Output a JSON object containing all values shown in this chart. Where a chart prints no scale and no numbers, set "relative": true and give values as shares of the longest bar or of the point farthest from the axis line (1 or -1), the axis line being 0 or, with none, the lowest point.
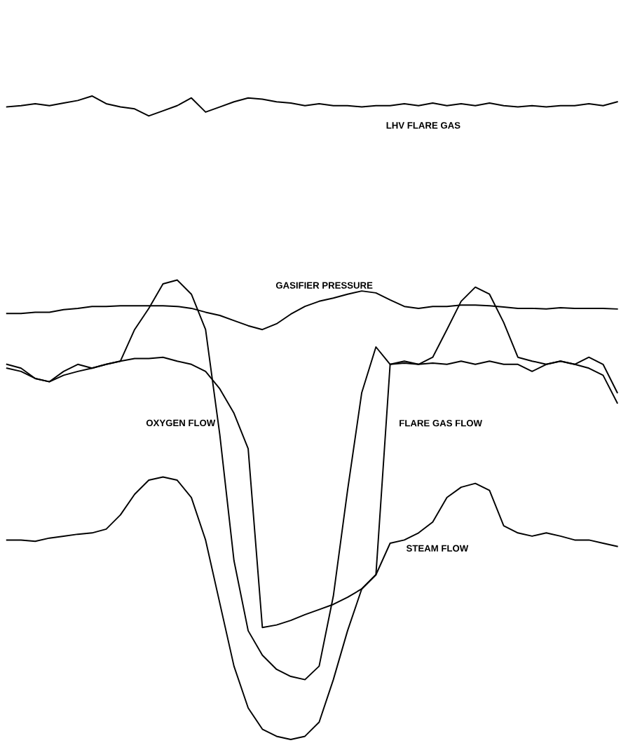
{
  "chart_data": {
    "type": "line",
    "relative": true,
    "legend": false,
    "marker": "none",
    "line_style": "solid",
    "categories": [
      null,
      null,
      null,
      null,
      null,
      null,
      null,
      null,
      null,
      null,
      null,
      null,
      null,
      null,
      null,
      null,
      null,
      null,
      null,
      null,
      null,
      null,
      null,
      null,
      null,
      null,
      null,
      null,
      null,
      null,
      null,
      null,
      null,
      null,
      null,
      null,
      null,
      null,
      null,
      null,
      null,
      null,
      null,
      null
    ],
    "series": [
      {
        "name": "LHV FLARE GAS",
        "color": "#000000",
        "values": [
          0.983,
          0.985,
          0.988,
          0.985,
          0.989,
          0.993,
          1.0,
          0.988,
          0.983,
          0.98,
          0.969,
          0.977,
          0.985,
          0.997,
          0.975,
          0.983,
          0.991,
          0.997,
          0.995,
          0.991,
          0.989,
          0.985,
          0.988,
          0.985,
          0.985,
          0.983,
          0.985,
          0.985,
          0.988,
          0.985,
          0.989,
          0.985,
          0.988,
          0.985,
          0.989,
          0.985,
          0.983,
          0.985,
          0.983,
          0.985,
          0.985,
          0.988,
          0.985,
          0.991
        ]
      },
      {
        "name": "GASIFIER PRESSURE",
        "color": "#000000",
        "values": [
          0.662,
          0.662,
          0.664,
          0.664,
          0.668,
          0.67,
          0.673,
          0.673,
          0.674,
          0.674,
          0.674,
          0.674,
          0.673,
          0.67,
          0.664,
          0.659,
          0.651,
          0.643,
          0.637,
          0.646,
          0.661,
          0.673,
          0.681,
          0.686,
          0.692,
          0.697,
          0.694,
          0.683,
          0.673,
          0.67,
          0.673,
          0.673,
          0.675,
          0.675,
          0.674,
          0.672,
          0.67,
          0.67,
          0.669,
          0.671,
          0.67,
          0.67,
          0.67,
          0.669
        ]
      },
      {
        "name": "OXYGEN FLOW",
        "color": "#000000",
        "values": [
          0.577,
          0.572,
          0.561,
          0.556,
          0.566,
          0.572,
          0.577,
          0.583,
          0.588,
          0.637,
          0.67,
          0.708,
          0.714,
          0.692,
          0.637,
          0.474,
          0.278,
          0.169,
          0.131,
          0.109,
          0.098,
          0.093,
          0.114,
          0.223,
          0.387,
          0.539,
          0.61,
          0.583,
          0.588,
          0.583,
          0.594,
          0.637,
          0.681,
          0.703,
          0.692,
          0.648,
          0.594,
          0.588,
          0.583,
          0.588,
          0.583,
          0.594,
          0.583,
          0.539
        ]
      },
      {
        "name": "FLARE GAS FLOW",
        "color": "#000000",
        "values": [
          0.583,
          0.577,
          0.561,
          0.556,
          0.572,
          0.583,
          0.577,
          0.583,
          0.588,
          0.592,
          0.592,
          0.594,
          0.588,
          0.583,
          0.572,
          0.545,
          0.507,
          0.452,
          0.174,
          0.178,
          0.185,
          0.194,
          0.202,
          0.21,
          0.221,
          0.234,
          0.256,
          0.583,
          0.585,
          0.583,
          0.585,
          0.583,
          0.588,
          0.583,
          0.588,
          0.583,
          0.583,
          0.572,
          0.583,
          0.588,
          0.583,
          0.577,
          0.566,
          0.523
        ]
      },
      {
        "name": "STEAM FLOW",
        "color": "#000000",
        "values": [
          0.31,
          0.31,
          0.308,
          0.313,
          0.316,
          0.319,
          0.321,
          0.327,
          0.349,
          0.381,
          0.403,
          0.408,
          0.403,
          0.376,
          0.31,
          0.212,
          0.114,
          0.049,
          0.016,
          0.005,
          0.0,
          0.005,
          0.027,
          0.093,
          0.169,
          0.234,
          0.256,
          0.305,
          0.31,
          0.321,
          0.338,
          0.376,
          0.392,
          0.398,
          0.387,
          0.332,
          0.321,
          0.316,
          0.321,
          0.316,
          0.31,
          0.31,
          0.305,
          0.3
        ]
      }
    ]
  }
}
